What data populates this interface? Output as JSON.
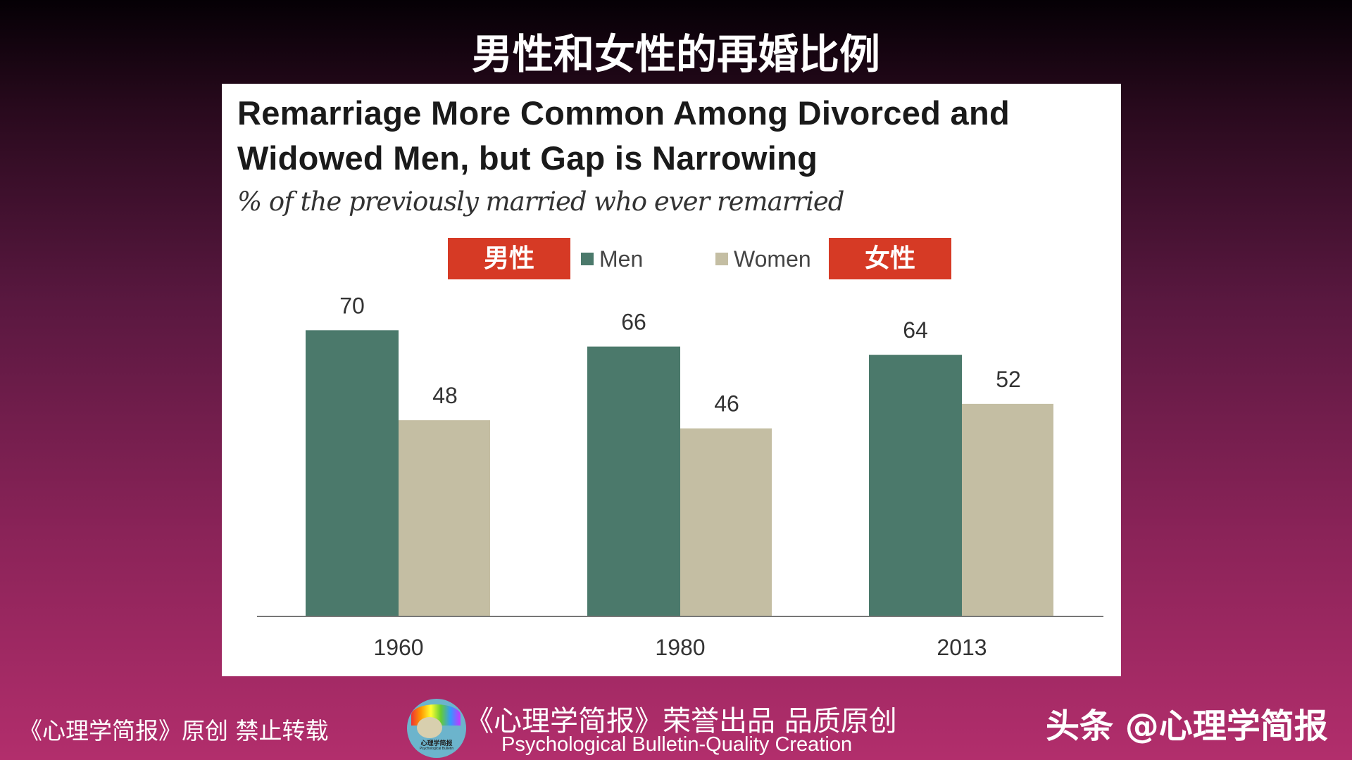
{
  "header": {
    "title": "男性和女性的再婚比例"
  },
  "chart_data": {
    "type": "bar",
    "title": "Remarriage More Common Among Divorced and Widowed Men, but Gap is Narrowing",
    "title_lines": [
      "Remarriage  More  Common  Among  Divorced  and",
      "Widowed  Men,  but  Gap  is  Narrowing"
    ],
    "subtitle": "% of the previously married who ever remarried",
    "categories": [
      "1960",
      "1980",
      "2013"
    ],
    "series": [
      {
        "name": "Men",
        "annotation": "男性",
        "color": "#4b796b",
        "values": [
          70,
          66,
          64
        ]
      },
      {
        "name": "Women",
        "annotation": "女性",
        "color": "#c4bea3",
        "values": [
          48,
          46,
          52
        ]
      }
    ],
    "ylim": [
      0,
      70
    ],
    "grid": false,
    "legend": "top-center",
    "xlabel": "",
    "ylabel": ""
  },
  "footer": {
    "left": "《心理学简报》原创 禁止转载",
    "center_line1": "《心理学简报》荣誉出品 品质原创",
    "center_line2": "Psychological Bulletin-Quality Creation",
    "logo_text": "心理学简报",
    "logo_subtext": "Psychological Bulletin",
    "right": "头条 @心理学简报"
  }
}
